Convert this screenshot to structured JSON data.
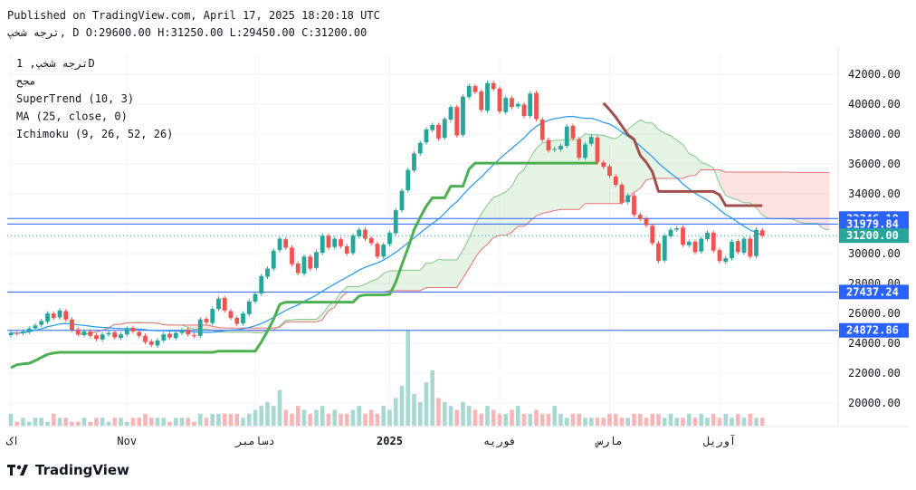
{
  "header": {
    "published": "Published on TradingView.com, April 17, 2025 18:20:18 UTC",
    "ohlc_line": "ترجه شخپ, D O:29600.00 H:31250.00 L:29450.00 C:31200.00"
  },
  "legend": {
    "symbol": "ترجه شخپ, 1D",
    "exchange": "مجح",
    "indicators": [
      "SuperTrend (10, 3)",
      "MA (25, close, 0)",
      "Ichimoku (9, 26, 52, 26)"
    ]
  },
  "brand": {
    "name": "TradingView"
  },
  "colors": {
    "up": "#26a69a",
    "down": "#ef5350",
    "ma": "#2196f3",
    "supertrend_up": "#4caf50",
    "supertrend_down": "#a0504b",
    "cloud_bull": "#a5d6a7",
    "cloud_bear": "#ef9a9a",
    "hline": "#2962ff"
  },
  "chart_data": {
    "type": "candlestick",
    "y_axis": {
      "min": 18500,
      "max": 43200,
      "ticks": [
        "20000.00",
        "22000.00",
        "24000.00",
        "26000.00",
        "28000.00",
        "30000.00",
        "32000.00",
        "34000.00",
        "36000.00",
        "38000.00",
        "40000.00",
        "42000.00"
      ],
      "tick_values": [
        20000,
        22000,
        24000,
        26000,
        28000,
        30000,
        32000,
        34000,
        36000,
        38000,
        40000,
        42000
      ]
    },
    "x_axis": {
      "labels": [
        {
          "text": "اک",
          "index": 0
        },
        {
          "text": "Nov",
          "index": 19
        },
        {
          "text": "دسامبر",
          "index": 40
        },
        {
          "text": "2025",
          "index": 62
        },
        {
          "text": "فوریه",
          "index": 80
        },
        {
          "text": "مارس",
          "index": 98
        },
        {
          "text": "آوریل",
          "index": 116
        }
      ]
    },
    "price_labels": [
      {
        "text": "32346.18",
        "value": 32346.18,
        "color": "#2962ff",
        "line": true
      },
      {
        "text": "31979.84",
        "value": 31979.84,
        "color": "#2962ff",
        "line": true
      },
      {
        "text": "31200.00",
        "value": 31200.0,
        "color": "#26a69a",
        "line": false
      },
      {
        "text": "27437.24",
        "value": 27437.24,
        "color": "#2962ff",
        "line": true
      },
      {
        "text": "24872.86",
        "value": 24872.86,
        "color": "#2962ff",
        "line": true
      }
    ],
    "last_close": 31200,
    "closes": [
      24700,
      24650,
      24800,
      25000,
      25200,
      25500,
      26000,
      25700,
      26200,
      25600,
      24900,
      24600,
      24800,
      24500,
      24300,
      24600,
      24700,
      24400,
      24600,
      25000,
      24800,
      24500,
      24100,
      23900,
      24200,
      24600,
      24400,
      24700,
      24900,
      24600,
      24500,
      25600,
      25400,
      26300,
      27000,
      26200,
      25700,
      25300,
      26000,
      26800,
      27300,
      28500,
      29000,
      30200,
      31000,
      30400,
      29300,
      28700,
      29800,
      29000,
      30100,
      31200,
      30400,
      31000,
      30500,
      30000,
      31200,
      31600,
      31000,
      30700,
      29800,
      30600,
      31400,
      32900,
      34200,
      35600,
      36700,
      37400,
      38300,
      38600,
      37700,
      39000,
      39800,
      37900,
      40500,
      41200,
      40800,
      39600,
      41400,
      41000,
      39500,
      40400,
      39800,
      40000,
      39200,
      40700,
      39000,
      37600,
      36900,
      37000,
      37200,
      38500,
      37700,
      36400,
      37300,
      37800,
      36100,
      35800,
      35200,
      34600,
      33400,
      33900,
      32600,
      32300,
      31900,
      30700,
      29500,
      31200,
      31600,
      31700,
      30600,
      30800,
      30100,
      31000,
      31400,
      30200,
      29500,
      29700,
      30800,
      30100,
      31000,
      29800,
      31600,
      31200
    ],
    "volumes": [
      3,
      1,
      2,
      1,
      2,
      2,
      1,
      3,
      2,
      2,
      1,
      1,
      2,
      1,
      2,
      2,
      1,
      2,
      2,
      1,
      2,
      2,
      3,
      2,
      2,
      2,
      1,
      2,
      2,
      2,
      1,
      3,
      2,
      3,
      3,
      3,
      3,
      3,
      2,
      3,
      4,
      5,
      6,
      5,
      9,
      4,
      3,
      5,
      4,
      3,
      4,
      5,
      3,
      4,
      3,
      3,
      4,
      5,
      3,
      4,
      3,
      5,
      4,
      7,
      10,
      24,
      8,
      6,
      11,
      14,
      7,
      6,
      5,
      4,
      6,
      5,
      4,
      3,
      5,
      4,
      3,
      3,
      4,
      5,
      3,
      3,
      4,
      3,
      3,
      5,
      3,
      2,
      3,
      3,
      2,
      2,
      2,
      2,
      3,
      3,
      2,
      2,
      3,
      3,
      2,
      3,
      3,
      2,
      3,
      2,
      2,
      3,
      2,
      3,
      2,
      3,
      2,
      3,
      2,
      3,
      2,
      3,
      2,
      2
    ]
  }
}
